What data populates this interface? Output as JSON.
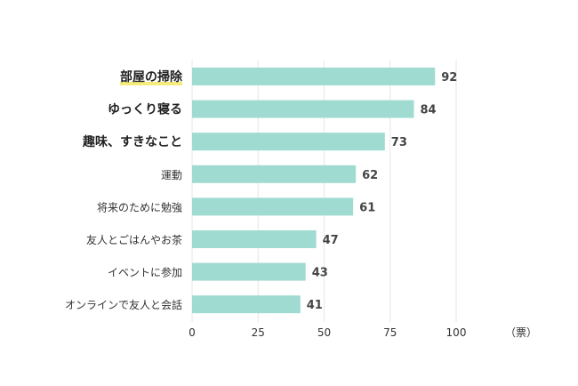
{
  "chart_data": {
    "type": "bar",
    "orientation": "horizontal",
    "categories": [
      "部屋の掃除",
      "ゆっくり寝る",
      "趣味、すきなこと",
      "運動",
      "将来のために勉強",
      "友人とごはんやお茶",
      "イベントに参加",
      "オンラインで友人と会話"
    ],
    "values": [
      92,
      84,
      73,
      62,
      61,
      47,
      43,
      41
    ],
    "emphasized": [
      true,
      true,
      true,
      false,
      false,
      false,
      false,
      false
    ],
    "highlighted": [
      true,
      false,
      false,
      false,
      false,
      false,
      false,
      false
    ],
    "xlim": [
      0,
      100
    ],
    "xticks": [
      0,
      25,
      50,
      75,
      100
    ],
    "x_unit": "（票）",
    "grid": true,
    "bar_color": "#9fdbd0",
    "highlight_color": "#f6ec7c"
  }
}
